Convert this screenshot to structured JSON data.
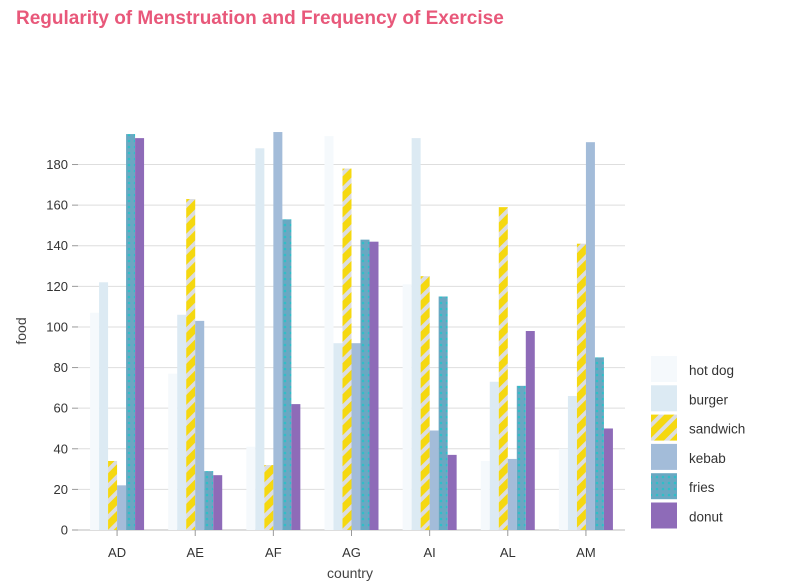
{
  "chart_data": {
    "type": "bar",
    "title": "Regularity of Menstruation and Frequency of Exercise",
    "xlabel": "country",
    "ylabel": "food",
    "categories": [
      "AD",
      "AE",
      "AF",
      "AG",
      "AI",
      "AL",
      "AM"
    ],
    "ylim": [
      0,
      197
    ],
    "yticks": [
      0,
      20,
      40,
      60,
      80,
      100,
      120,
      140,
      160,
      180
    ],
    "grid": true,
    "legend_position": "bottom-right",
    "series": [
      {
        "name": "hot dog",
        "values": [
          107,
          77,
          41,
          194,
          121,
          34,
          40
        ],
        "color": "#f5f9fc",
        "pattern": "solid"
      },
      {
        "name": "burger",
        "values": [
          122,
          106,
          188,
          92,
          193,
          73,
          66
        ],
        "color": "#dceaf3",
        "pattern": "solid"
      },
      {
        "name": "sandwich",
        "values": [
          34,
          163,
          32,
          178,
          125,
          159,
          141
        ],
        "color": "#f5d810",
        "pattern": "diagonal-stripes"
      },
      {
        "name": "kebab",
        "values": [
          22,
          103,
          196,
          92,
          49,
          35,
          191
        ],
        "color": "#a3bcd9",
        "pattern": "solid"
      },
      {
        "name": "fries",
        "values": [
          195,
          29,
          153,
          143,
          115,
          71,
          85
        ],
        "color": "#6bb0c6",
        "pattern": "dots"
      },
      {
        "name": "donut",
        "values": [
          193,
          27,
          62,
          142,
          37,
          98,
          50
        ],
        "color": "#8e6bb8",
        "pattern": "solid"
      }
    ]
  }
}
